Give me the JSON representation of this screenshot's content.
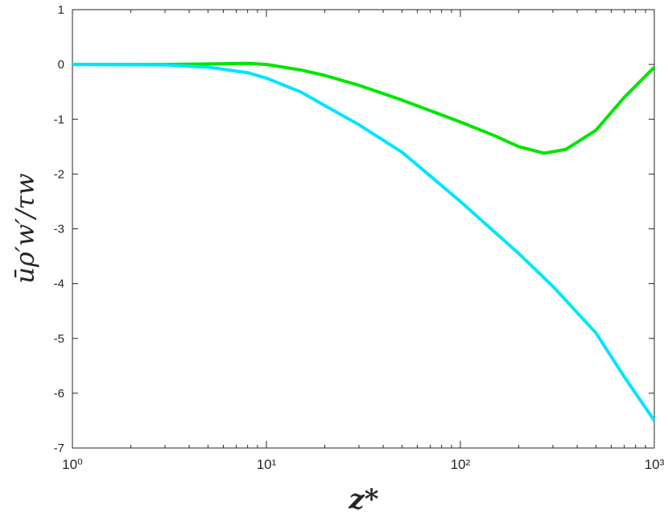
{
  "chart_data": {
    "type": "line",
    "xlabel": "z*",
    "ylabel": "ūρ′w′/τw",
    "xscale": "log",
    "xlim": [
      1,
      1000
    ],
    "xticks": [
      {
        "value": 1,
        "label": "10⁰"
      },
      {
        "value": 10,
        "label": "10¹"
      },
      {
        "value": 100,
        "label": "10²"
      },
      {
        "value": 1000,
        "label": "10³"
      }
    ],
    "ylim": [
      -7,
      1
    ],
    "yticks": [
      -7,
      -6,
      -5,
      -4,
      -3,
      -2,
      -1,
      0,
      1
    ],
    "series": [
      {
        "color": "#00e600",
        "x": [
          1,
          3,
          8,
          10,
          15,
          20,
          30,
          50,
          100,
          150,
          200,
          270,
          350,
          500,
          700,
          1000
        ],
        "values": [
          0,
          0,
          0.02,
          0,
          -0.1,
          -0.2,
          -0.38,
          -0.65,
          -1.05,
          -1.3,
          -1.5,
          -1.62,
          -1.55,
          -1.2,
          -0.6,
          -0.05
        ]
      },
      {
        "color": "#00e5ff",
        "x": [
          1,
          3,
          5,
          8,
          10,
          15,
          20,
          30,
          50,
          100,
          200,
          300,
          500,
          700,
          1000
        ],
        "values": [
          0,
          -0.01,
          -0.05,
          -0.15,
          -0.25,
          -0.5,
          -0.75,
          -1.1,
          -1.6,
          -2.5,
          -3.45,
          -4.05,
          -4.9,
          -5.7,
          -6.5
        ]
      }
    ]
  }
}
